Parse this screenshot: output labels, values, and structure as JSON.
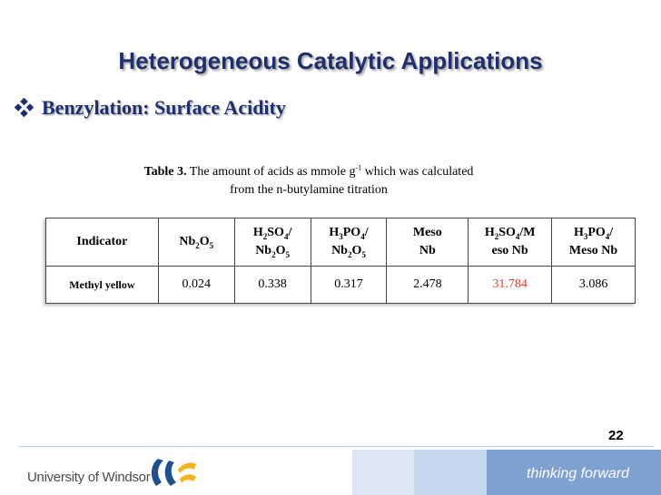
{
  "slide": {
    "title": "Heterogeneous Catalytic Applications",
    "bullet": "Benzylation: Surface Acidity",
    "page_number": "22"
  },
  "caption": {
    "label": "Table 3.",
    "line1_before": "The amount of acids as mmole g",
    "line1_sup": "-1",
    "line1_after": " which was calculated",
    "line2": "from the n-butylamine titration"
  },
  "table": {
    "headers": {
      "h0": "Indicator",
      "h1": [
        "Nb",
        "2",
        "O",
        "5"
      ],
      "h2a": [
        "H",
        "2",
        "SO",
        "4",
        "/"
      ],
      "h2b": [
        "Nb",
        "2",
        "O",
        "5"
      ],
      "h3a": [
        "H",
        "3",
        "PO",
        "4",
        "/"
      ],
      "h3b": [
        "Nb",
        "2",
        "O",
        "5"
      ],
      "h4a": "Meso",
      "h4b": "Nb",
      "h5a": [
        "H",
        "2",
        "SO",
        "4",
        "/M"
      ],
      "h5b": "eso Nb",
      "h6a": [
        "H",
        "3",
        "PO",
        "4",
        "/"
      ],
      "h6b": "Meso Nb"
    },
    "row": {
      "indicator": "Methyl yellow",
      "values": [
        "0.024",
        "0.338",
        "0.317",
        "2.478",
        "31.784",
        "3.086"
      ]
    }
  },
  "footer": {
    "university": "University of Windsor",
    "tagline": "thinking forward"
  },
  "colors": {
    "title": "#1f2f6e",
    "highlight": "#e8402a",
    "footer_band": "#7ea1cf"
  }
}
